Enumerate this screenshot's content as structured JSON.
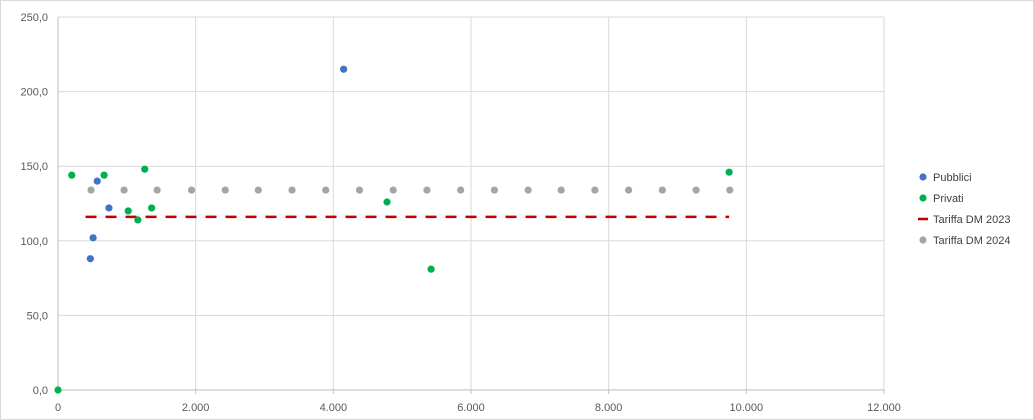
{
  "chart_data": {
    "type": "scatter",
    "title": "",
    "xlabel": "",
    "ylabel": "",
    "xlim": [
      0,
      12000
    ],
    "ylim": [
      0,
      250
    ],
    "x_ticks": [
      {
        "value": 0,
        "label": "0"
      },
      {
        "value": 2000,
        "label": "2.000"
      },
      {
        "value": 4000,
        "label": "4.000"
      },
      {
        "value": 6000,
        "label": "6.000"
      },
      {
        "value": 8000,
        "label": "8.000"
      },
      {
        "value": 10000,
        "label": "10.000"
      },
      {
        "value": 12000,
        "label": "12.000"
      }
    ],
    "y_ticks": [
      {
        "value": 0,
        "label": "0,0"
      },
      {
        "value": 50,
        "label": "50,0"
      },
      {
        "value": 100,
        "label": "100,0"
      },
      {
        "value": 150,
        "label": "150,0"
      },
      {
        "value": 200,
        "label": "200,0"
      },
      {
        "value": 250,
        "label": "250,0"
      }
    ],
    "grid": true,
    "legend_position": "right",
    "series": [
      {
        "name": "Pubblici",
        "style": "marker",
        "color": "#4472c4",
        "points": [
          {
            "x": 470,
            "y": 88
          },
          {
            "x": 510,
            "y": 102
          },
          {
            "x": 570,
            "y": 140
          },
          {
            "x": 740,
            "y": 122
          },
          {
            "x": 4150,
            "y": 215
          }
        ]
      },
      {
        "name": "Privati",
        "style": "marker",
        "color": "#00b050",
        "points": [
          {
            "x": 0,
            "y": 0
          },
          {
            "x": 200,
            "y": 144
          },
          {
            "x": 670,
            "y": 144
          },
          {
            "x": 1020,
            "y": 120
          },
          {
            "x": 1160,
            "y": 114
          },
          {
            "x": 1260,
            "y": 148
          },
          {
            "x": 1360,
            "y": 122
          },
          {
            "x": 4780,
            "y": 126
          },
          {
            "x": 5420,
            "y": 81
          },
          {
            "x": 9750,
            "y": 146
          }
        ]
      },
      {
        "name": "Tariffa DM 2023",
        "style": "dash",
        "color": "#c00000",
        "x_from": 400,
        "x_to": 9750,
        "y": 116
      },
      {
        "name": "Tariffa DM 2024",
        "style": "marker",
        "color": "#a5a5a5",
        "points": [
          {
            "x": 480,
            "y": 134
          },
          {
            "x": 960,
            "y": 134
          },
          {
            "x": 1440,
            "y": 134
          },
          {
            "x": 1940,
            "y": 134
          },
          {
            "x": 2430,
            "y": 134
          },
          {
            "x": 2910,
            "y": 134
          },
          {
            "x": 3400,
            "y": 134
          },
          {
            "x": 3890,
            "y": 134
          },
          {
            "x": 4380,
            "y": 134
          },
          {
            "x": 4870,
            "y": 134
          },
          {
            "x": 5360,
            "y": 134
          },
          {
            "x": 5850,
            "y": 134
          },
          {
            "x": 6340,
            "y": 134
          },
          {
            "x": 6830,
            "y": 134
          },
          {
            "x": 7310,
            "y": 134
          },
          {
            "x": 7800,
            "y": 134
          },
          {
            "x": 8290,
            "y": 134
          },
          {
            "x": 8780,
            "y": 134
          },
          {
            "x": 9270,
            "y": 134
          },
          {
            "x": 9760,
            "y": 134
          }
        ]
      }
    ]
  }
}
